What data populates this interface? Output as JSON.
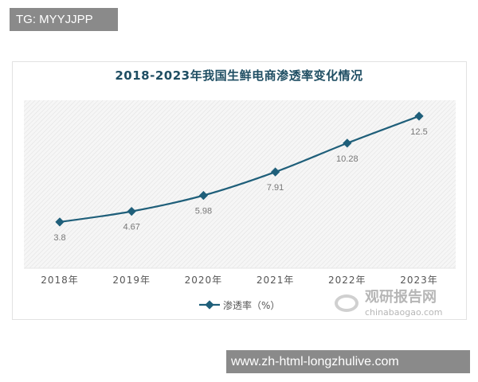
{
  "header_label": "TG: MYYJJPP",
  "footer_label": "www.zh-html-longzhulive.com",
  "watermark": {
    "cn": "观研报告网",
    "en": "chinabaogao.com"
  },
  "chart_data": {
    "type": "line",
    "title": "2018-2023年我国生鲜电商渗透率变化情况",
    "categories": [
      "2018年",
      "2019年",
      "2020年",
      "2021年",
      "2022年",
      "2023年"
    ],
    "series": [
      {
        "name": "渗透率（%）",
        "values": [
          3.8,
          4.67,
          5.98,
          7.91,
          10.28,
          12.5
        ],
        "labels": [
          "3.8",
          "4.67",
          "5.98",
          "7.91",
          "10.28",
          "12.5"
        ],
        "color": "#1f5f7a"
      }
    ],
    "ylim": [
      0,
      14
    ],
    "grid": false,
    "legend": "bottom",
    "background": "hatched"
  }
}
